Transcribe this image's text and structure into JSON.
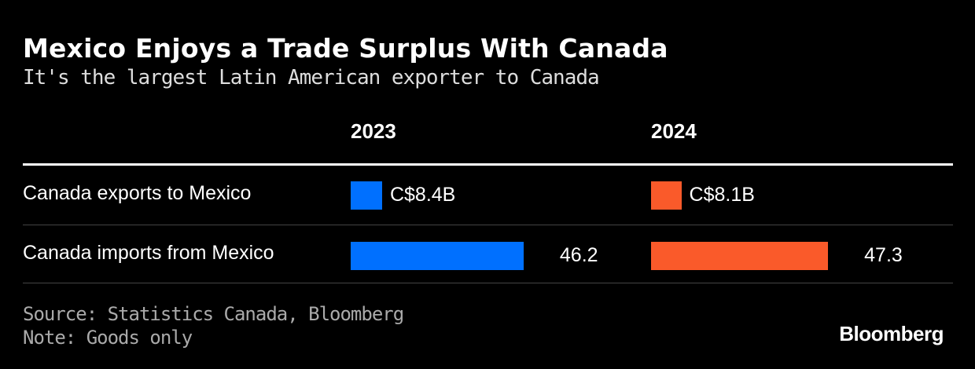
{
  "title": "Mexico Enjoys a Trade Surplus With Canada",
  "subtitle": "It's the largest Latin American exporter to Canada",
  "chart_data": {
    "type": "table",
    "columns": [
      "2023",
      "2024"
    ],
    "rows": [
      {
        "label": "Canada exports to Mexico",
        "values": [
          8.4,
          8.1
        ],
        "labels": [
          "C$8.4B",
          "C$8.1B"
        ]
      },
      {
        "label": "Canada imports from Mexico",
        "values": [
          46.2,
          47.3
        ],
        "labels": [
          "46.2",
          "47.3"
        ]
      }
    ],
    "colors": [
      "#0070FF",
      "#FA5A2A"
    ]
  },
  "source": "Source: Statistics Canada, Bloomberg",
  "note": "Note: Goods only",
  "logo": "Bloomberg"
}
